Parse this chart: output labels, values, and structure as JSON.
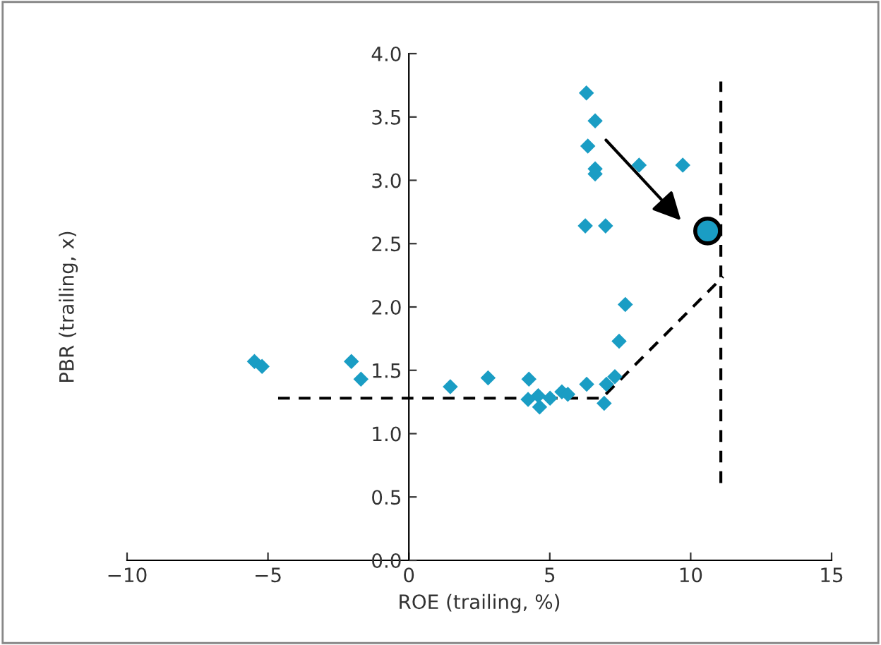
{
  "chart_data": {
    "type": "scatter",
    "xlabel": "ROE (trailing, %)",
    "ylabel": "PBR (trailing, x)",
    "xlim": [
      -10,
      15
    ],
    "ylim": [
      0,
      4
    ],
    "xticks": [
      {
        "value": -10,
        "label": "−10"
      },
      {
        "value": -5,
        "label": "−5"
      },
      0,
      5,
      10,
      15
    ],
    "yticks": [
      {
        "value": 0,
        "label": "0.0"
      },
      0.5,
      {
        "value": 1,
        "label": "1.0"
      },
      1.5,
      {
        "value": 2,
        "label": "2.0"
      },
      2.5,
      {
        "value": 3,
        "label": "3.0"
      },
      3.5,
      {
        "value": 4,
        "label": "4.0"
      }
    ],
    "grid": false,
    "legend": false,
    "marker": "diamond",
    "series": [
      {
        "color": "#1a9dc4",
        "x": [
          6.3,
          6.61,
          6.35,
          6.61,
          6.61,
          8.17,
          9.72,
          6.26,
          6.98,
          7.68,
          7.46,
          -5.48,
          -5.21,
          -2.04,
          -1.7,
          1.47,
          2.81,
          4.26,
          4.23,
          4.64,
          4.59,
          5.01,
          5.43,
          5.64,
          6.31,
          6.93,
          7.01,
          7.31
        ],
        "values": [
          3.69,
          3.47,
          3.27,
          3.09,
          3.05,
          3.12,
          3.12,
          2.64,
          2.64,
          2.02,
          1.73,
          1.57,
          1.53,
          1.57,
          1.43,
          1.37,
          1.44,
          1.43,
          1.27,
          1.21,
          1.3,
          1.28,
          1.33,
          1.31,
          1.39,
          1.24,
          1.39,
          1.45
        ]
      },
      {
        "color": "#1a9dc4",
        "marker": "circle",
        "x": [
          10.6
        ],
        "values": [
          2.6
        ]
      },
      {
        "type": "line",
        "color": "#000000",
        "line_style": "dashed",
        "marker": "none",
        "x": [
          -4.64,
          6.85,
          11.15
        ],
        "values": [
          1.28,
          1.28,
          2.24
        ]
      },
      {
        "type": "line",
        "color": "#000000",
        "line_style": "dashed",
        "marker": "none",
        "x": [
          11.07,
          11.07
        ],
        "values": [
          0.61,
          3.78
        ]
      }
    ]
  }
}
